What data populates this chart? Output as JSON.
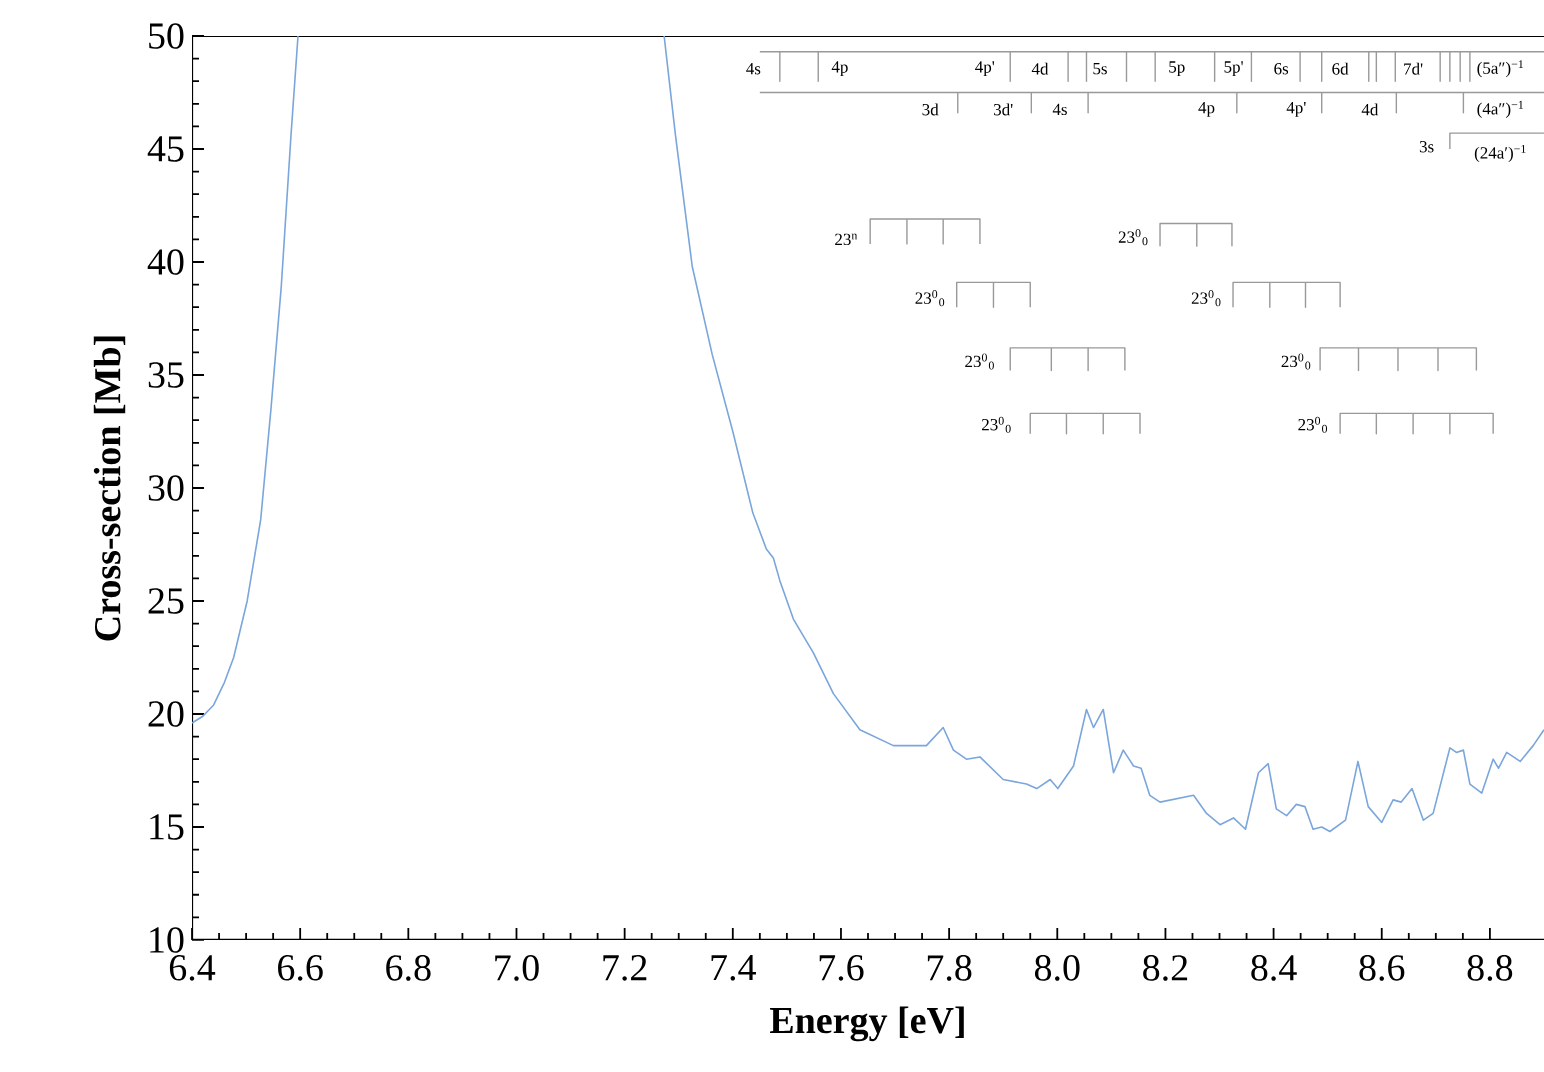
{
  "chart_data": {
    "type": "line",
    "xlabel": "Energy [eV]",
    "ylabel": "Cross-section [Mb]",
    "xlim": [
      6.4,
      8.9
    ],
    "ylim": [
      10,
      50
    ],
    "xticks": [
      6.4,
      6.6,
      6.8,
      {
        "value": 7.0,
        "label": "7.0"
      },
      7.2,
      7.4,
      7.6,
      7.8,
      {
        "value": 8.0,
        "label": "8.0"
      },
      8.2,
      8.4,
      8.6,
      8.8
    ],
    "yticks": [
      10,
      15,
      20,
      25,
      30,
      35,
      40,
      45,
      50
    ],
    "series": [
      {
        "color": "#7aa6dc",
        "x": [
          6.4,
          6.42,
          6.44,
          6.46,
          6.477,
          6.502,
          6.527,
          6.546,
          6.565,
          6.583,
          6.596,
          6.9,
          7.273,
          7.294,
          7.325,
          7.362,
          7.4,
          7.437,
          7.462,
          7.475,
          7.487,
          7.512,
          7.549,
          7.586,
          7.635,
          7.697,
          7.758,
          7.789,
          7.808,
          7.832,
          7.857,
          7.9,
          7.943,
          7.962,
          7.987,
          8.001,
          8.03,
          8.054,
          8.067,
          8.085,
          8.104,
          8.122,
          8.141,
          8.155,
          8.171,
          8.19,
          8.252,
          8.276,
          8.301,
          8.326,
          8.348,
          8.372,
          8.39,
          8.405,
          8.424,
          8.442,
          8.458,
          8.473,
          8.489,
          8.504,
          8.533,
          8.556,
          8.575,
          8.6,
          8.621,
          8.636,
          8.656,
          8.677,
          8.695,
          8.726,
          8.738,
          8.751,
          8.763,
          8.785,
          8.806,
          8.816,
          8.831,
          8.856,
          8.88,
          8.9
        ],
        "values": [
          19.6,
          19.9,
          20.4,
          21.4,
          22.5,
          25.0,
          28.6,
          33.5,
          38.9,
          45.6,
          50,
          null,
          50,
          45.6,
          39.8,
          35.9,
          32.5,
          28.9,
          27.3,
          26.9,
          25.9,
          24.2,
          22.7,
          20.9,
          19.3,
          18.6,
          18.6,
          19.4,
          18.4,
          18.0,
          18.1,
          17.1,
          16.9,
          16.7,
          17.1,
          16.7,
          17.7,
          20.2,
          19.4,
          20.2,
          17.4,
          18.4,
          17.7,
          17.6,
          16.4,
          16.1,
          16.4,
          15.6,
          15.1,
          15.4,
          14.9,
          17.4,
          17.8,
          15.8,
          15.5,
          16.0,
          15.9,
          14.9,
          15.0,
          14.8,
          15.3,
          17.9,
          15.9,
          15.2,
          16.2,
          16.1,
          16.7,
          15.3,
          15.6,
          18.5,
          18.3,
          18.4,
          16.9,
          16.5,
          18.0,
          17.6,
          18.3,
          17.9,
          18.6,
          19.3
        ]
      },
      {
        "color": "#999999",
        "x": [
          7.45,
          7.487,
          7.487,
          7.487,
          7.558,
          7.558,
          7.558,
          7.913,
          7.913,
          7.913,
          8.02,
          8.02,
          8.02,
          8.054,
          8.054,
          8.054,
          8.128,
          8.128,
          8.128,
          8.181,
          8.181,
          8.181,
          8.291,
          8.291,
          8.291,
          8.359,
          8.359,
          8.359,
          8.449,
          8.449,
          8.449,
          8.489,
          8.489,
          8.489,
          8.576,
          8.576,
          8.576,
          8.59,
          8.59,
          8.59,
          8.625,
          8.625,
          8.625,
          8.708,
          8.708,
          8.708,
          8.726,
          8.726,
          8.726,
          8.745,
          8.745,
          8.745,
          8.763,
          8.763,
          8.763,
          8.9
        ],
        "values": [
          49.3,
          49.3,
          48.0,
          49.3,
          49.3,
          48.0,
          49.3,
          49.3,
          48.0,
          49.3,
          49.3,
          48.0,
          49.3,
          49.3,
          48.0,
          49.3,
          49.3,
          48.0,
          49.3,
          49.3,
          48.0,
          49.3,
          49.3,
          48.0,
          49.3,
          49.3,
          48.0,
          49.3,
          49.3,
          48.0,
          49.3,
          49.3,
          48.0,
          49.3,
          49.3,
          48.0,
          49.3,
          49.3,
          48.0,
          49.3,
          49.3,
          48.0,
          49.3,
          49.3,
          48.0,
          49.3,
          49.3,
          48.0,
          49.3,
          49.3,
          48.0,
          49.3,
          49.3,
          48.0,
          49.3,
          49.3
        ]
      },
      {
        "color": "#999999",
        "x": [
          7.45,
          7.816,
          7.816,
          7.816,
          7.952,
          7.952,
          7.952,
          8.057,
          8.057,
          8.057,
          8.332,
          8.332,
          8.332,
          8.489,
          8.489,
          8.489,
          8.627,
          8.627,
          8.627,
          8.751,
          8.751,
          8.751,
          8.9
        ],
        "values": [
          47.5,
          47.5,
          46.6,
          47.5,
          47.5,
          46.6,
          47.5,
          47.5,
          46.6,
          47.5,
          47.5,
          46.6,
          47.5,
          47.5,
          46.6,
          47.5,
          47.5,
          46.6,
          47.5,
          47.5,
          46.6,
          47.5,
          47.5
        ]
      },
      {
        "color": "#999999",
        "x": [
          8.726,
          8.726,
          8.9
        ],
        "values": [
          45.0,
          45.7,
          45.7
        ]
      },
      {
        "color": "#999999",
        "x": [
          7.654,
          7.654,
          7.722,
          7.722,
          7.722,
          7.789,
          7.789,
          7.789,
          7.857,
          7.857
        ],
        "values": [
          40.8,
          41.9,
          41.9,
          40.8,
          41.9,
          41.9,
          40.8,
          41.9,
          41.9,
          40.8
        ]
      },
      {
        "color": "#999999",
        "x": [
          8.19,
          8.19,
          8.258,
          8.258,
          8.258,
          8.323,
          8.323
        ],
        "values": [
          40.7,
          41.7,
          41.7,
          40.7,
          41.7,
          41.7,
          40.7
        ]
      },
      {
        "color": "#999999",
        "x": [
          7.814,
          7.814,
          7.882,
          7.882,
          7.882,
          7.95,
          7.95
        ],
        "values": [
          38.0,
          39.1,
          39.1,
          38.0,
          39.1,
          39.1,
          38.0
        ]
      },
      {
        "color": "#999999",
        "x": [
          8.325,
          8.325,
          8.393,
          8.393,
          8.393,
          8.459,
          8.459,
          8.459,
          8.523,
          8.523
        ],
        "values": [
          38.0,
          39.1,
          39.1,
          38.0,
          39.1,
          39.1,
          38.0,
          39.1,
          39.1,
          38.0
        ]
      },
      {
        "color": "#999999",
        "x": [
          7.913,
          7.913,
          7.989,
          7.989,
          7.989,
          8.057,
          8.057,
          8.057,
          8.125,
          8.125
        ],
        "values": [
          35.2,
          36.2,
          36.2,
          35.2,
          36.2,
          36.2,
          35.2,
          36.2,
          36.2,
          35.2
        ]
      },
      {
        "color": "#999999",
        "x": [
          8.486,
          8.486,
          8.557,
          8.557,
          8.557,
          8.63,
          8.63,
          8.63,
          8.704,
          8.704,
          8.704,
          8.775,
          8.775
        ],
        "values": [
          35.2,
          36.2,
          36.2,
          35.2,
          36.2,
          36.2,
          35.2,
          36.2,
          36.2,
          35.2,
          36.2,
          36.2,
          35.2
        ]
      },
      {
        "color": "#999999",
        "x": [
          7.95,
          7.95,
          8.017,
          8.017,
          8.017,
          8.085,
          8.085,
          8.085,
          8.153,
          8.153
        ],
        "values": [
          32.4,
          33.3,
          33.3,
          32.4,
          33.3,
          33.3,
          32.4,
          33.3,
          33.3,
          32.4
        ]
      },
      {
        "color": "#999999",
        "x": [
          8.523,
          8.523,
          8.59,
          8.59,
          8.59,
          8.658,
          8.658,
          8.658,
          8.726,
          8.726,
          8.726,
          8.806,
          8.806
        ],
        "values": [
          32.4,
          33.3,
          33.3,
          32.4,
          33.3,
          33.3,
          32.4,
          33.3,
          33.3,
          32.4,
          33.3,
          33.3,
          32.4
        ]
      }
    ],
    "annotations": [
      "4s",
      "4p",
      "4p'",
      "4d",
      "5s",
      "5p",
      "5p'",
      "6s",
      "6d",
      "7d'",
      "(5a″)$^{−1}$",
      "3d",
      "3d'",
      "4s",
      "4p",
      "4p'",
      "4d",
      "(4a″)$^{−1}$",
      "3s",
      "(24a′)$^{−1}$",
      "23$^{n}$",
      "23$^{0}$$_{0}$",
      "23$^{0}$$_{0}$",
      "23$^{0}$$_{0}$",
      "23$^{0}$$_{0}$",
      "23$^{0}$$_{0}$",
      "23$^{0}$$_{0}$",
      "23$^{0}$$_{0}$"
    ]
  }
}
